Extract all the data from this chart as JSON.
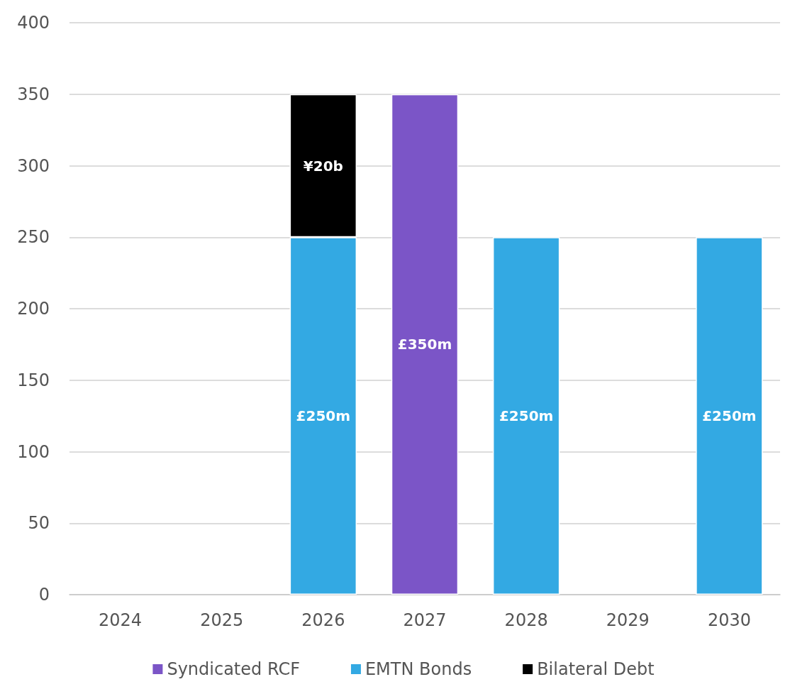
{
  "chart_data": {
    "type": "bar",
    "stacked": true,
    "categories": [
      "2024",
      "2025",
      "2026",
      "2027",
      "2028",
      "2029",
      "2030"
    ],
    "series": [
      {
        "name": "Syndicated RCF",
        "color": "#7b55c7",
        "values": [
          null,
          null,
          null,
          350,
          null,
          null,
          null
        ],
        "value_labels": [
          null,
          null,
          null,
          "£350m",
          null,
          null,
          null
        ]
      },
      {
        "name": "EMTN Bonds",
        "color": "#33a9e3",
        "values": [
          null,
          null,
          250,
          null,
          250,
          null,
          250
        ],
        "value_labels": [
          null,
          null,
          "£250m",
          null,
          "£250m",
          null,
          "£250m"
        ]
      },
      {
        "name": "Bilateral Debt",
        "color": "#000000",
        "values": [
          null,
          null,
          100,
          null,
          null,
          null,
          null
        ]
      }
    ],
    "annotations": [
      "¥20b"
    ],
    "ylim": [
      0,
      400
    ],
    "yticks": [
      0,
      50,
      100,
      150,
      200,
      250,
      300,
      350,
      400
    ],
    "grid": "y",
    "legend": "bottom"
  }
}
